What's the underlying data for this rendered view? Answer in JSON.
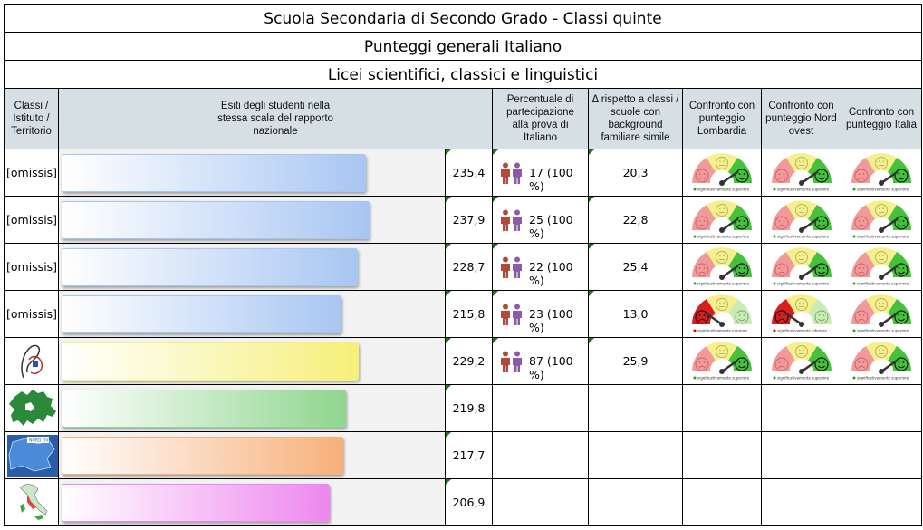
{
  "header": {
    "title": "Scuola Secondaria di Secondo Grado - Classi quinte",
    "subtitle": "Punteggi generali Italiano",
    "school_type": "Licei scientifici, classici e linguistici"
  },
  "columns": {
    "classi": "Classi / Istituto / Territorio",
    "esiti": "Esiti degli studenti nella stessa scala del rapporto nazionale",
    "percentuale": "Percentuale di partecipazione alla prova di Italiano",
    "delta": "Δ rispetto a classi / scuole con background familiare simile",
    "lombardia": "Confronto con punteggio Lombardia",
    "nordovest": "Confronto con punteggio Nord ovest",
    "italia": "Confronto con punteggio Italia"
  },
  "gauge_labels": {
    "superiore": "significativamente superiore",
    "inferiore": "significativamente inferiore"
  },
  "rows": [
    {
      "name": "[omissis]",
      "score": "235,4",
      "score_value": 235.4,
      "participation": "17 (100 %)",
      "delta": "20,3",
      "lombardia": "superiore",
      "nordovest": "superiore",
      "italia": "superiore",
      "bar_color": "#a8c6f2"
    },
    {
      "name": "[omissis]",
      "score": "237,9",
      "score_value": 237.9,
      "participation": "25 (100 %)",
      "delta": "22,8",
      "lombardia": "superiore",
      "nordovest": "superiore",
      "italia": "superiore",
      "bar_color": "#a8c6f2"
    },
    {
      "name": "[omissis]",
      "score": "228,7",
      "score_value": 228.7,
      "participation": "22 (100 %)",
      "delta": "25,4",
      "lombardia": "superiore",
      "nordovest": "superiore",
      "italia": "superiore",
      "bar_color": "#a8c6f2"
    },
    {
      "name": "[omissis]",
      "score": "215,8",
      "score_value": 215.8,
      "participation": "23 (100 %)",
      "delta": "13,0",
      "lombardia": "inferiore",
      "nordovest": "inferiore",
      "italia": "superiore",
      "bar_color": "#a8c6f2"
    },
    {
      "name": "istituto-logo",
      "score": "229,2",
      "score_value": 229.2,
      "participation": "87 (100 %)",
      "delta": "25,9",
      "lombardia": "superiore",
      "nordovest": "superiore",
      "italia": "superiore",
      "bar_color": "#f5f07a"
    },
    {
      "name": "lombardia-map",
      "score": "219,8",
      "score_value": 219.8,
      "bar_color": "#8fd68f"
    },
    {
      "name": "nord-ovest-map",
      "score": "217,7",
      "score_value": 217.7,
      "bar_color": "#f7b07a"
    },
    {
      "name": "italia-map",
      "score": "206,9",
      "score_value": 206.9,
      "bar_color": "#ee88ee"
    }
  ]
}
